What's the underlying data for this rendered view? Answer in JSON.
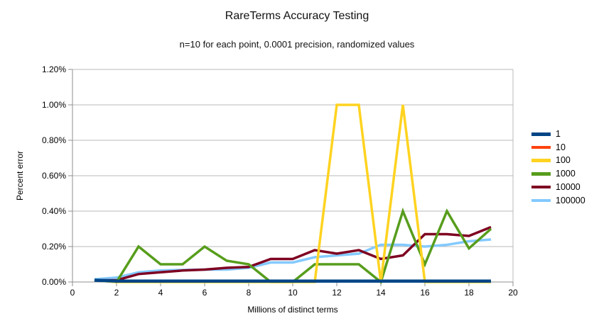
{
  "chart": {
    "title": "RareTerms Accuracy Testing",
    "subtitle": "n=10 for each point, 0.0001 precision, randomized values",
    "x_axis_title": "Millions of distinct terms",
    "y_axis_title": "Percent error"
  },
  "chart_data": {
    "type": "line",
    "title": "RareTerms Accuracy Testing",
    "subtitle": "n=10 for each point, 0.0001 precision, randomized values",
    "xlabel": "Millions of distinct terms",
    "ylabel": "Percent error",
    "xlim": [
      0,
      20
    ],
    "ylim": [
      0,
      1.2
    ],
    "grid": "horizontal",
    "legend_position": "right",
    "x_ticks": [
      0,
      2,
      4,
      6,
      8,
      10,
      12,
      14,
      16,
      18,
      20
    ],
    "y_ticks": [
      {
        "value": 0.0,
        "label": "0.00%"
      },
      {
        "value": 0.2,
        "label": "0.20%"
      },
      {
        "value": 0.4,
        "label": "0.40%"
      },
      {
        "value": 0.6,
        "label": "0.60%"
      },
      {
        "value": 0.8,
        "label": "0.80%"
      },
      {
        "value": 1.0,
        "label": "1.00%"
      },
      {
        "value": 1.2,
        "label": "1.20%"
      }
    ],
    "x": [
      1,
      2,
      3,
      4,
      5,
      6,
      7,
      8,
      9,
      10,
      11,
      12,
      13,
      14,
      15,
      16,
      17,
      18,
      19
    ],
    "series": [
      {
        "name": "1",
        "color": "#004586",
        "values": [
          0.01,
          0.005,
          0.005,
          0.005,
          0.005,
          0.005,
          0.005,
          0.005,
          0.005,
          0.005,
          0.005,
          0.005,
          0.005,
          0.005,
          0.005,
          0.005,
          0.005,
          0.005,
          0.005
        ]
      },
      {
        "name": "10",
        "color": "#FF420E",
        "values": [
          0.01,
          0.005,
          0.005,
          0.005,
          0.005,
          0.005,
          0.005,
          0.005,
          0.005,
          0.005,
          0.005,
          0.005,
          0.005,
          0.005,
          0.005,
          0.005,
          0.005,
          0.005,
          0.005
        ]
      },
      {
        "name": "100",
        "color": "#FFD320",
        "values": [
          0.01,
          0,
          0,
          0,
          0,
          0,
          0,
          0,
          0,
          0,
          0,
          1.0,
          1.0,
          0,
          1.0,
          0,
          0,
          0,
          0
        ]
      },
      {
        "name": "1000",
        "color": "#579D1C",
        "values": [
          0.01,
          0,
          0.2,
          0.1,
          0.1,
          0.2,
          0.12,
          0.1,
          0,
          0,
          0.1,
          0.1,
          0.1,
          0,
          0.4,
          0.1,
          0.4,
          0.19,
          0.3
        ]
      },
      {
        "name": "10000",
        "color": "#7E0021",
        "values": [
          0.01,
          0.01,
          0.045,
          0.055,
          0.065,
          0.07,
          0.08,
          0.085,
          0.13,
          0.13,
          0.18,
          0.16,
          0.18,
          0.13,
          0.15,
          0.27,
          0.27,
          0.26,
          0.31
        ]
      },
      {
        "name": "100000",
        "color": "#83CAFF",
        "values": [
          0.015,
          0.025,
          0.055,
          0.065,
          0.068,
          0.07,
          0.07,
          0.08,
          0.11,
          0.11,
          0.14,
          0.15,
          0.16,
          0.21,
          0.21,
          0.2,
          0.21,
          0.23,
          0.24
        ]
      }
    ]
  }
}
